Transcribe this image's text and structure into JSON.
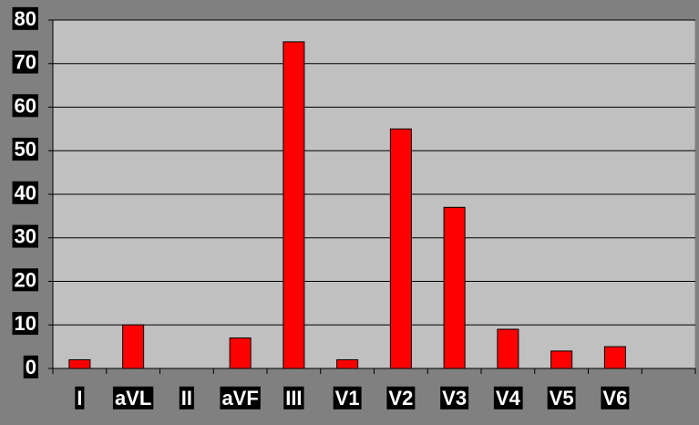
{
  "chart_data": {
    "type": "bar",
    "categories": [
      "I",
      "aVL",
      "II",
      "aVF",
      "III",
      "V1",
      "V2",
      "V3",
      "V4",
      "V5",
      "V6",
      null
    ],
    "values": [
      2,
      10,
      0,
      7,
      75,
      2,
      55,
      37,
      9,
      4,
      5,
      null
    ],
    "color": "#ff0000",
    "ylim": [
      0,
      80
    ],
    "yticks": [
      0,
      10,
      20,
      30,
      40,
      50,
      60,
      70,
      80
    ],
    "grid": true
  }
}
